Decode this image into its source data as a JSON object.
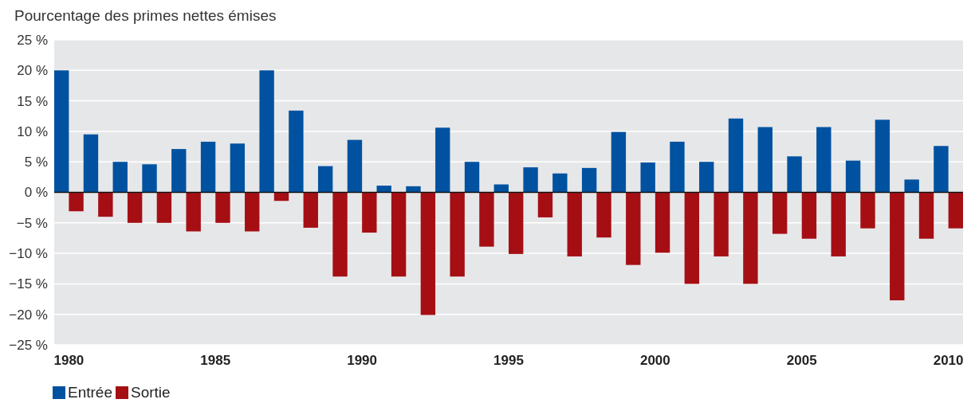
{
  "chart_data": {
    "type": "bar",
    "title": "Pourcentage des primes nettes émises",
    "categories": [
      "1980",
      null,
      null,
      null,
      null,
      "1985",
      null,
      null,
      null,
      null,
      "1990",
      null,
      null,
      null,
      null,
      "1995",
      null,
      null,
      null,
      null,
      "2000",
      null,
      null,
      null,
      null,
      "2005",
      null,
      null,
      null,
      null,
      "2010"
    ],
    "series": [
      {
        "name": "Entrée",
        "color": "#0052a0",
        "values": [
          20,
          9.5,
          5,
          4.6,
          7.1,
          8.3,
          8,
          20,
          13.4,
          4.3,
          8.6,
          1.1,
          1,
          10.6,
          5,
          1.3,
          4.1,
          3.1,
          4,
          9.9,
          4.9,
          8.3,
          5,
          12.1,
          10.7,
          5.9,
          10.7,
          5.2,
          11.9,
          2.1,
          7.6
        ]
      },
      {
        "name": "Sortie",
        "color": "#a50f14",
        "values": [
          -3.1,
          -4,
          -5,
          -5,
          -6.4,
          -5,
          -6.4,
          -1.4,
          -5.8,
          -13.8,
          -6.6,
          -13.8,
          -20.1,
          -13.8,
          -8.9,
          -10.1,
          -4.1,
          -10.5,
          -7.4,
          -11.9,
          -9.9,
          -15,
          -10.5,
          -15,
          -6.8,
          -7.6,
          -10.5,
          -5.9,
          -17.7,
          -7.6,
          -5.9
        ]
      }
    ],
    "ylim": [
      -25,
      25
    ],
    "yticks": [
      {
        "value": -25,
        "label": "−25 %"
      },
      {
        "value": -20,
        "label": "−20 %"
      },
      {
        "value": -15,
        "label": "−15 %"
      },
      {
        "value": -10,
        "label": "−10 %"
      },
      {
        "value": -5,
        "label": "−5 %"
      },
      {
        "value": 0,
        "label": "0 %"
      },
      {
        "value": 5,
        "label": "5 %"
      },
      {
        "value": 10,
        "label": "10 %"
      },
      {
        "value": 15,
        "label": "15 %"
      },
      {
        "value": 20,
        "label": "20 %"
      },
      {
        "value": 25,
        "label": "25 %"
      }
    ],
    "grid": "y",
    "legend": "bottom left"
  }
}
